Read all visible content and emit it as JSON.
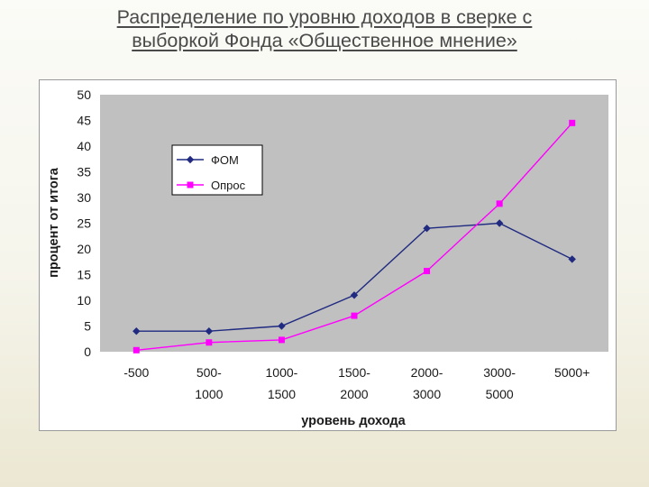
{
  "slide": {
    "title_line1": "Распределение по уровню доходов в сверке с",
    "title_line2": "выборкой Фонда «Общественное мнение»"
  },
  "chart_data": {
    "type": "line",
    "title": "",
    "xlabel": "уровень дохода",
    "ylabel": "процент от итога",
    "ylim": [
      0,
      50
    ],
    "yticks": [
      0,
      5,
      10,
      15,
      20,
      25,
      30,
      35,
      40,
      45,
      50
    ],
    "categories": [
      [
        "-500",
        ""
      ],
      [
        "500-",
        "1000"
      ],
      [
        "1000-",
        "1500"
      ],
      [
        "1500-",
        "2000"
      ],
      [
        "2000-",
        "3000"
      ],
      [
        "3000-",
        "5000"
      ],
      [
        "5000+",
        ""
      ]
    ],
    "series": [
      {
        "name": "ФОМ",
        "color": "#1f2a80",
        "marker": "diamond",
        "values": [
          4,
          4,
          5,
          11,
          24,
          25,
          18
        ]
      },
      {
        "name": "Опрос",
        "color": "#ff00ff",
        "marker": "square",
        "values": [
          0.3,
          1.8,
          2.3,
          7,
          15.7,
          28.8,
          44.5
        ]
      }
    ],
    "grid": false,
    "legend_position": "top-left",
    "plot_background": "#c0c0c0"
  }
}
